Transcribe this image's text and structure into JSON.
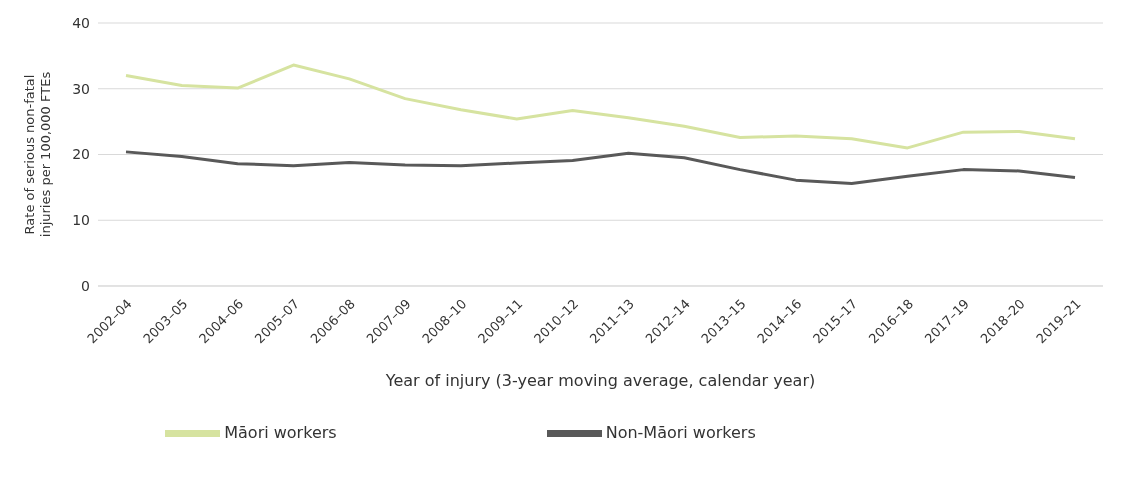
{
  "chart_data": {
    "type": "line",
    "xlabel": "Year of injury (3-year moving average, calendar year)",
    "ylabel": "Rate of serious non-fatal injuries per 100,000 FTEs",
    "categories": [
      "2002–04",
      "2003–05",
      "2004–06",
      "2005–07",
      "2006–08",
      "2007–09",
      "2008–10",
      "2009–11",
      "2010–12",
      "2011–13",
      "2012–14",
      "2013–15",
      "2014–16",
      "2015–17",
      "2016–18",
      "2017–19",
      "2018–20",
      "2019–21"
    ],
    "series": [
      {
        "name": "Māori workers",
        "color": "#d6e3a0",
        "values": [
          32.0,
          30.5,
          30.1,
          33.6,
          31.5,
          28.5,
          26.8,
          25.4,
          26.7,
          25.6,
          24.3,
          22.6,
          22.8,
          22.4,
          21.0,
          23.4,
          23.5,
          22.4
        ]
      },
      {
        "name": "Non-Māori workers",
        "color": "#595959",
        "values": [
          20.4,
          19.7,
          18.6,
          18.3,
          18.8,
          18.4,
          18.3,
          18.7,
          19.1,
          20.2,
          19.5,
          17.7,
          16.1,
          15.6,
          16.7,
          17.7,
          17.5,
          16.5
        ]
      }
    ],
    "ylim": [
      0,
      40
    ],
    "yticks": [
      0,
      10,
      20,
      30,
      40
    ],
    "grid": "y",
    "legend": "bottom",
    "marker": "none",
    "line_style": "solid"
  }
}
